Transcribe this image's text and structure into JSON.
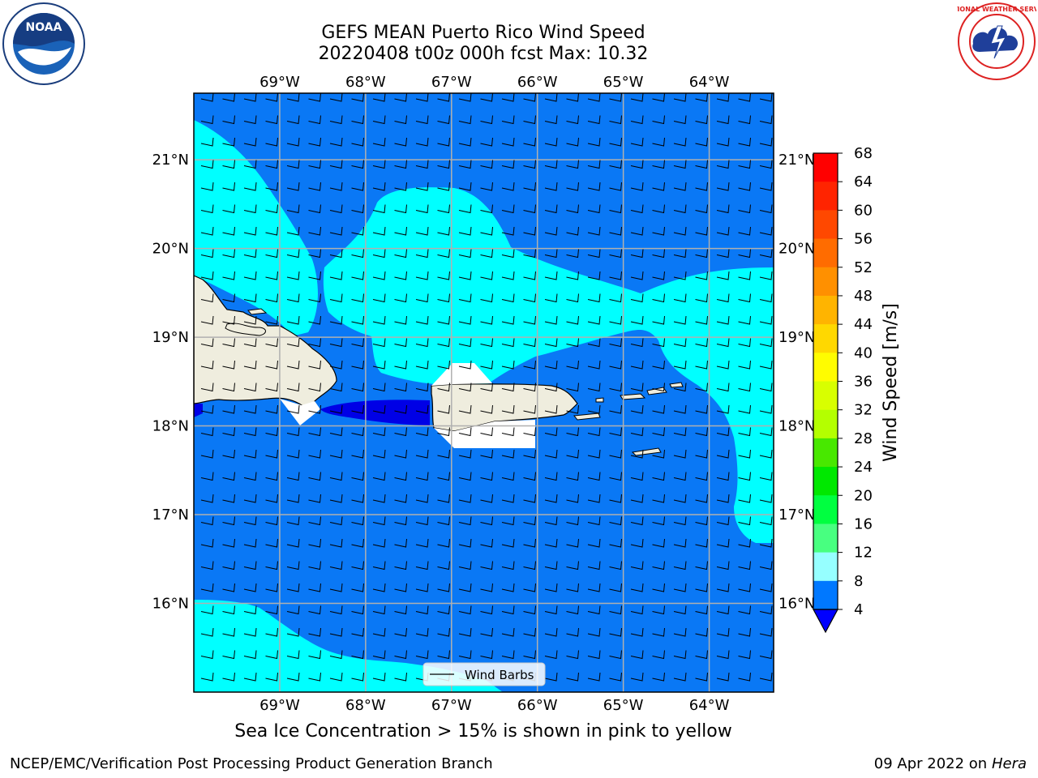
{
  "title": {
    "line1": "GEFS MEAN Puerto Rico Wind Speed",
    "line2": "20220408 t00z 000h fcst   Max: 10.32"
  },
  "map": {
    "lon_ticks": [
      "69°W",
      "68°W",
      "67°W",
      "66°W",
      "65°W",
      "64°W"
    ],
    "lat_ticks": [
      "21°N",
      "20°N",
      "19°N",
      "18°N",
      "17°N",
      "16°N"
    ],
    "lon_range": [
      -70.0,
      -63.25
    ],
    "lat_range": [
      15.0,
      21.75
    ],
    "legend_label": "Wind Barbs",
    "barb_direction": "easterly"
  },
  "colorbar": {
    "label": "Wind Speed [m/s]",
    "ticks": [
      "68",
      "64",
      "60",
      "56",
      "52",
      "48",
      "44",
      "40",
      "36",
      "32",
      "28",
      "24",
      "20",
      "16",
      "12",
      "8",
      "4"
    ],
    "colors": [
      "#ff0000",
      "#ff2400",
      "#ff4800",
      "#ff6c00",
      "#ff9000",
      "#ffb400",
      "#ffd800",
      "#fffc00",
      "#d8ff00",
      "#b4ff00",
      "#48e800",
      "#00e800",
      "#00ff40",
      "#48ff80",
      "#96ffff",
      "#48ffff",
      "#00ffff",
      "#0078ff"
    ],
    "underflow_color": "#0000ff"
  },
  "colors": {
    "ocean_4_8": "#0a78f5",
    "ocean_8_12": "#00ffff",
    "ocean_lt_4": "#0000e6",
    "land": "#efedde"
  },
  "footer": {
    "note": "Sea Ice Concentration > 15% is shown in pink to yellow",
    "left": "NCEP/EMC/Verification Post Processing Product Generation Branch",
    "right_date": "09 Apr 2022 on ",
    "right_machine": "Hera"
  },
  "logos": {
    "left_text": "NOAA",
    "right_text": "NATIONAL WEATHER SERVICE"
  }
}
